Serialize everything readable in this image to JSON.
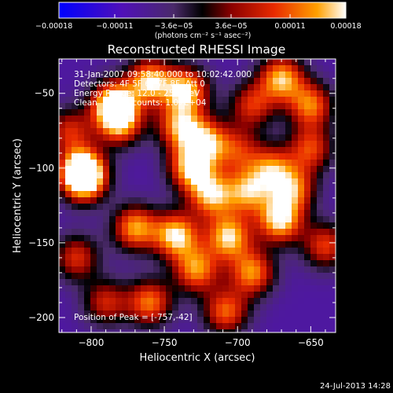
{
  "chart_data": {
    "type": "heatmap",
    "title": "Reconstructed RHESSI Image",
    "xlabel": "Heliocentric X (arcsec)",
    "ylabel": "Heliocentric Y (arcsec)",
    "xlim": [
      -822,
      -633
    ],
    "ylim": [
      -210,
      -27
    ],
    "x_ticks": [
      {
        "value": -800,
        "label": "−800"
      },
      {
        "value": -750,
        "label": "−750"
      },
      {
        "value": -700,
        "label": "−700"
      },
      {
        "value": -650,
        "label": "−650"
      }
    ],
    "y_ticks": [
      {
        "value": -50,
        "label": "−50"
      },
      {
        "value": -100,
        "label": "−100"
      },
      {
        "value": -150,
        "label": "−150"
      },
      {
        "value": -200,
        "label": "−200"
      }
    ],
    "colorbar": {
      "unit_label": "(photons cm⁻² s⁻¹ asec⁻²)",
      "range": [
        -0.00018,
        0.00018
      ],
      "ticks": [
        {
          "value": -0.00018,
          "label": "−0.00018"
        },
        {
          "value": -0.00011,
          "label": "−0.00011"
        },
        {
          "value": -3.6e-05,
          "label": "−3.6e−05"
        },
        {
          "value": 3.6e-05,
          "label": "3.6e−05"
        },
        {
          "value": 0.00011,
          "label": "0.00011"
        },
        {
          "value": 0.00018,
          "label": "0.00018"
        }
      ]
    },
    "annotations": {
      "time_range": "31-Jan-2007 09:58:40.000 to 10:02:42.000",
      "detectors": "Detectors: 4F 5F 6F 7F 8F, Att 0",
      "energy_range": "Energy Range: 12.0 - 25.0 keV",
      "method_counts": "Clean     Total counts: 1.07E+04",
      "peak_position": "Position of Peak = [-757,-42]"
    },
    "peak": {
      "x": -757,
      "y": -42
    },
    "sources": [
      {
        "x": -785,
        "y": -57,
        "value": 0.00018
      },
      {
        "x": -806,
        "y": -101,
        "value": 0.00015
      },
      {
        "x": -805,
        "y": -108,
        "value": 0.00014
      },
      {
        "x": -780,
        "y": -70,
        "value": 0.00012
      },
      {
        "x": -760,
        "y": -42,
        "value": 0.00016
      },
      {
        "x": -735,
        "y": -48,
        "value": 0.00016
      },
      {
        "x": -740,
        "y": -72,
        "value": 0.00012
      },
      {
        "x": -722,
        "y": -82,
        "value": 0.00013
      },
      {
        "x": -732,
        "y": -100,
        "value": 0.00015
      },
      {
        "x": -718,
        "y": -118,
        "value": 0.00014
      },
      {
        "x": -742,
        "y": -145,
        "value": 0.00017
      },
      {
        "x": -770,
        "y": -140,
        "value": 0.00014
      },
      {
        "x": -728,
        "y": -168,
        "value": 0.00013
      },
      {
        "x": -706,
        "y": -146,
        "value": 0.00016
      },
      {
        "x": -693,
        "y": -116,
        "value": 0.00012
      },
      {
        "x": -690,
        "y": -170,
        "value": 0.00013
      },
      {
        "x": -671,
        "y": -135,
        "value": 0.00017
      },
      {
        "x": -677,
        "y": -100,
        "value": 0.0001
      },
      {
        "x": -662,
        "y": -114,
        "value": 0.00011
      },
      {
        "x": -650,
        "y": -87,
        "value": 9e-05
      },
      {
        "x": -670,
        "y": -40,
        "value": 0.00015
      },
      {
        "x": -650,
        "y": -58,
        "value": 0.00012
      },
      {
        "x": -690,
        "y": -58,
        "value": 8e-05
      },
      {
        "x": -810,
        "y": -160,
        "value": 8e-05
      },
      {
        "x": -790,
        "y": -190,
        "value": 7e-05
      },
      {
        "x": -760,
        "y": -190,
        "value": 0.00012
      },
      {
        "x": -708,
        "y": -196,
        "value": 0.00011
      },
      {
        "x": -640,
        "y": -152,
        "value": 9e-05
      },
      {
        "x": -815,
        "y": -75,
        "value": 7e-05
      },
      {
        "x": -700,
        "y": -88,
        "value": 6e-05
      }
    ]
  },
  "footer": {
    "date": "24-Jul-2013 14:28"
  }
}
